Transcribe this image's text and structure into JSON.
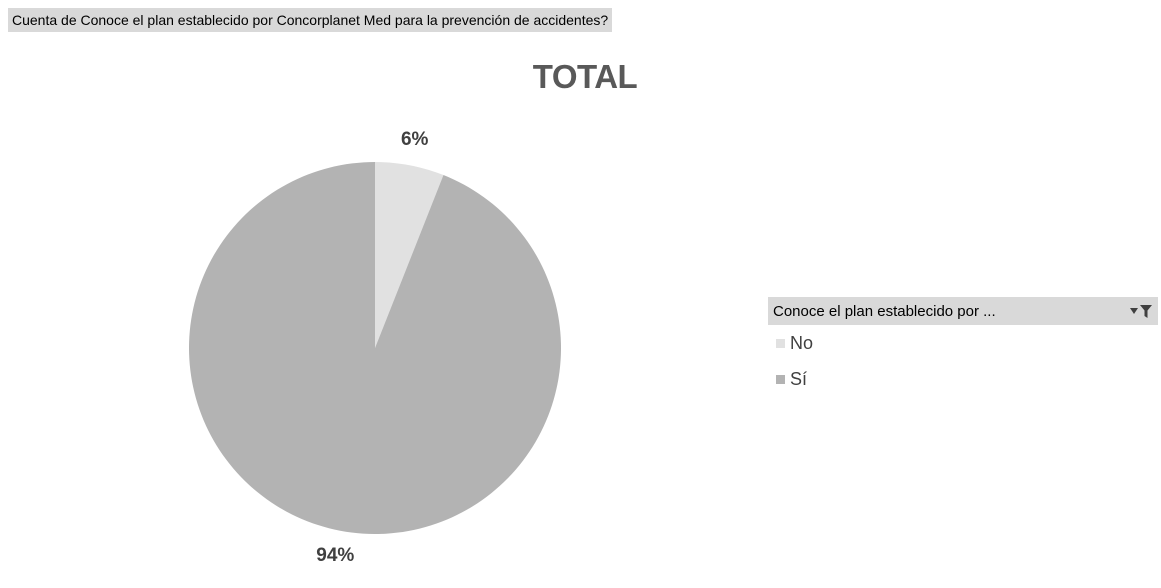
{
  "pivot": {
    "value_field_label": "Cuenta de Conoce el plan  establecido por Concorplanet Med para la prevención de accidentes?"
  },
  "legend": {
    "field_label": "Conoce el plan establecido por ..."
  },
  "icons": {
    "filter_button": "dropdown-filter-icon"
  },
  "chart_data": {
    "type": "pie",
    "title": "TOTAL",
    "categories": [
      "No",
      "Sí"
    ],
    "values": [
      6,
      94
    ],
    "data_labels": [
      "6%",
      "94%"
    ],
    "colors": [
      "#e1e1e1",
      "#b3b3b3"
    ],
    "legend_position": "right"
  }
}
